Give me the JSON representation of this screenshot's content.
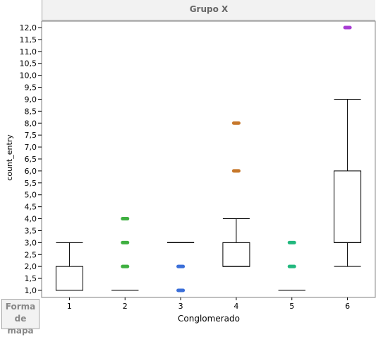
{
  "header": {
    "title": "Grupo X"
  },
  "legend": {
    "label": "Forma de mapa"
  },
  "chart_data": {
    "type": "box",
    "title": "Grupo X",
    "xlabel": "Conglomerado",
    "ylabel": "count_entry",
    "ylim": [
      1.0,
      12.0
    ],
    "yticks": [
      "1,0",
      "1,5",
      "2,0",
      "2,5",
      "3,0",
      "3,5",
      "4,0",
      "4,5",
      "5,0",
      "5,5",
      "6,0",
      "6,5",
      "7,0",
      "7,5",
      "8,0",
      "8,5",
      "9,0",
      "9,5",
      "10,0",
      "10,5",
      "11,0",
      "11,5",
      "12,0"
    ],
    "categories": [
      "1",
      "2",
      "3",
      "4",
      "5",
      "6"
    ],
    "boxes": [
      {
        "category": "1",
        "min": 1,
        "q1": 1,
        "median": 1,
        "q3": 2,
        "max": 3,
        "outliers": [],
        "color": "#888888"
      },
      {
        "category": "2",
        "min": 1,
        "q1": 1,
        "median": 1,
        "q3": 1,
        "max": 1,
        "outliers": [
          2,
          3,
          4
        ],
        "color": "#3fb041"
      },
      {
        "category": "3",
        "min": 3,
        "q1": 3,
        "median": 3,
        "q3": 3,
        "max": 3,
        "outliers": [
          1,
          2
        ],
        "color": "#3b6fd9"
      },
      {
        "category": "4",
        "min": 2,
        "q1": 2,
        "median": 2,
        "q3": 3,
        "max": 4,
        "outliers": [
          6,
          8
        ],
        "color": "#c6772a"
      },
      {
        "category": "5",
        "min": 1,
        "q1": 1,
        "median": 1,
        "q3": 1,
        "max": 1,
        "outliers": [
          2,
          3
        ],
        "color": "#22b87e"
      },
      {
        "category": "6",
        "min": 2,
        "q1": 3,
        "median": 3,
        "q3": 6,
        "max": 9,
        "outliers": [
          12
        ],
        "color": "#a83cd4"
      }
    ]
  }
}
